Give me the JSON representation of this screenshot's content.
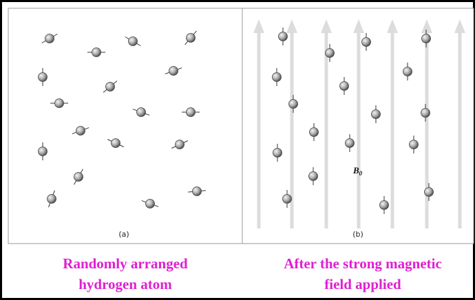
{
  "panels": [
    {
      "label": "(a)",
      "caption": [
        "Randomly arranged",
        "hydrogen atom"
      ]
    },
    {
      "label": "(b)",
      "caption": [
        "After the strong magnetic",
        "field applied"
      ]
    }
  ],
  "field_label": {
    "symbol": "B",
    "subscript": "0"
  }
}
